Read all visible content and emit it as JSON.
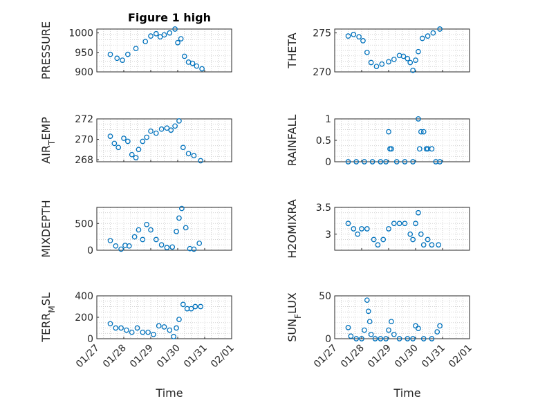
{
  "chart_data": {
    "title": "Figure 1 high",
    "xlabel": "Time",
    "x_ticks": [
      "01/27",
      "01/28",
      "01/29",
      "01/30",
      "01/31",
      "02/01"
    ],
    "x_range": [
      "01/27",
      "02/01"
    ],
    "marker": "open-circle",
    "marker_color": "#0072BD",
    "grid": "on (dotted minor grid)",
    "panels": [
      {
        "type": "scatter",
        "ylabel": "PRESSURE",
        "ylabel_base": "PRESSURE",
        "ylabel_sub": "",
        "ylabel_tail": "",
        "ylim": [
          900,
          1010
        ],
        "yticks": [
          900,
          950,
          1000
        ],
        "x": [
          0.5,
          0.75,
          0.95,
          1.15,
          1.45,
          1.8,
          2.0,
          2.2,
          2.35,
          2.5,
          2.7,
          2.9,
          3.0,
          3.12,
          3.25,
          3.4,
          3.55,
          3.7,
          3.9
        ],
        "y": [
          945,
          935,
          930,
          945,
          960,
          978,
          992,
          998,
          990,
          995,
          1000,
          1010,
          975,
          985,
          940,
          925,
          922,
          915,
          908
        ]
      },
      {
        "type": "scatter",
        "ylabel": "THETA",
        "ylabel_base": "THETA",
        "ylabel_sub": "",
        "ylabel_tail": "",
        "ylim": [
          270,
          275.5
        ],
        "yticks": [
          270,
          275
        ],
        "x": [
          0.5,
          0.7,
          0.9,
          1.05,
          1.2,
          1.35,
          1.55,
          1.75,
          2.0,
          2.2,
          2.4,
          2.55,
          2.7,
          2.8,
          2.9,
          3.0,
          3.1,
          3.25,
          3.45,
          3.65,
          3.9
        ],
        "y": [
          274.6,
          274.8,
          274.5,
          274.0,
          272.5,
          271.2,
          270.7,
          271.0,
          271.3,
          271.6,
          272.1,
          272.0,
          271.7,
          271.2,
          270.2,
          271.5,
          272.6,
          274.3,
          274.6,
          275.0,
          275.5
        ]
      },
      {
        "type": "scatter",
        "ylabel": "AIR_TEMP",
        "ylabel_base": "AIR",
        "ylabel_sub": "T",
        "ylabel_tail": "EMP",
        "ylim": [
          267.8,
          272
        ],
        "yticks": [
          268,
          270,
          272
        ],
        "x": [
          0.5,
          0.65,
          0.8,
          1.0,
          1.15,
          1.3,
          1.45,
          1.55,
          1.7,
          1.85,
          2.0,
          2.2,
          2.4,
          2.6,
          2.75,
          2.9,
          3.05,
          3.2,
          3.4,
          3.6,
          3.85
        ],
        "y": [
          270.3,
          269.6,
          269.2,
          270.1,
          269.8,
          268.5,
          268.2,
          269.0,
          269.8,
          270.2,
          270.8,
          270.6,
          271.0,
          271.1,
          270.9,
          271.3,
          271.8,
          269.2,
          268.6,
          268.4,
          267.9
        ]
      },
      {
        "type": "scatter",
        "ylabel": "RAINFALL",
        "ylabel_base": "RAINFALL",
        "ylabel_sub": "",
        "ylabel_tail": "",
        "ylim": [
          0,
          1
        ],
        "yticks": [
          0,
          0.5,
          1
        ],
        "x": [
          0.5,
          0.8,
          1.1,
          1.4,
          1.7,
          1.9,
          2.0,
          2.05,
          2.1,
          2.3,
          2.6,
          2.9,
          3.1,
          3.15,
          3.2,
          3.3,
          3.4,
          3.45,
          3.6,
          3.75,
          3.9
        ],
        "y": [
          0,
          0,
          0,
          0,
          0,
          0,
          0.7,
          0.3,
          0.3,
          0,
          0,
          0,
          1.0,
          0.3,
          0.7,
          0.7,
          0.3,
          0.3,
          0.3,
          0,
          0
        ]
      },
      {
        "type": "scatter",
        "ylabel": "MIXDEPTH",
        "ylabel_base": "MIXDEPTH",
        "ylabel_sub": "",
        "ylabel_tail": "",
        "ylim": [
          0,
          800
        ],
        "yticks": [
          0,
          500
        ],
        "x": [
          0.5,
          0.7,
          0.9,
          1.05,
          1.2,
          1.4,
          1.55,
          1.7,
          1.85,
          2.0,
          2.2,
          2.4,
          2.6,
          2.8,
          2.95,
          3.05,
          3.15,
          3.3,
          3.45,
          3.6,
          3.8
        ],
        "y": [
          180,
          80,
          20,
          90,
          80,
          250,
          380,
          200,
          480,
          380,
          200,
          100,
          50,
          60,
          350,
          600,
          780,
          420,
          30,
          20,
          130
        ]
      },
      {
        "type": "scatter",
        "ylabel": "H2OMIXRA",
        "ylabel_base": "H2OMIXRA",
        "ylabel_sub": "",
        "ylabel_tail": "",
        "ylim": [
          2.7,
          3.5
        ],
        "yticks": [
          3,
          3.5
        ],
        "x": [
          0.5,
          0.7,
          0.85,
          1.0,
          1.2,
          1.45,
          1.6,
          1.8,
          2.0,
          2.2,
          2.4,
          2.6,
          2.8,
          2.9,
          3.0,
          3.1,
          3.2,
          3.3,
          3.45,
          3.6,
          3.85
        ],
        "y": [
          3.2,
          3.1,
          3.0,
          3.1,
          3.1,
          2.9,
          2.8,
          2.9,
          3.1,
          3.2,
          3.2,
          3.2,
          3.0,
          2.9,
          3.2,
          3.4,
          3.0,
          2.8,
          2.9,
          2.8,
          2.8
        ]
      },
      {
        "type": "scatter",
        "ylabel": "TERR_MSL",
        "ylabel_base": "TERR",
        "ylabel_sub": "M",
        "ylabel_tail": "SL",
        "ylim": [
          0,
          400
        ],
        "yticks": [
          0,
          200,
          400
        ],
        "x": [
          0.5,
          0.7,
          0.9,
          1.1,
          1.3,
          1.5,
          1.7,
          1.9,
          2.1,
          2.3,
          2.5,
          2.7,
          2.85,
          2.95,
          3.05,
          3.2,
          3.35,
          3.5,
          3.65,
          3.85
        ],
        "y": [
          140,
          100,
          100,
          80,
          60,
          100,
          60,
          60,
          40,
          120,
          110,
          80,
          20,
          100,
          180,
          320,
          280,
          280,
          300,
          300
        ]
      },
      {
        "type": "scatter",
        "ylabel": "SUN_FLUX",
        "ylabel_base": "SUN",
        "ylabel_sub": "F",
        "ylabel_tail": "LUX",
        "ylim": [
          0,
          50
        ],
        "yticks": [
          0,
          50
        ],
        "x": [
          0.5,
          0.6,
          0.8,
          1.0,
          1.1,
          1.2,
          1.25,
          1.3,
          1.35,
          1.5,
          1.7,
          1.9,
          2.0,
          2.1,
          2.2,
          2.4,
          2.7,
          2.9,
          3.0,
          3.1,
          3.3,
          3.6,
          3.8,
          3.9
        ],
        "y": [
          13,
          3,
          0,
          0,
          10,
          45,
          32,
          20,
          5,
          0,
          0,
          0,
          10,
          20,
          5,
          0,
          0,
          0,
          15,
          12,
          0,
          0,
          8,
          15
        ]
      }
    ]
  }
}
